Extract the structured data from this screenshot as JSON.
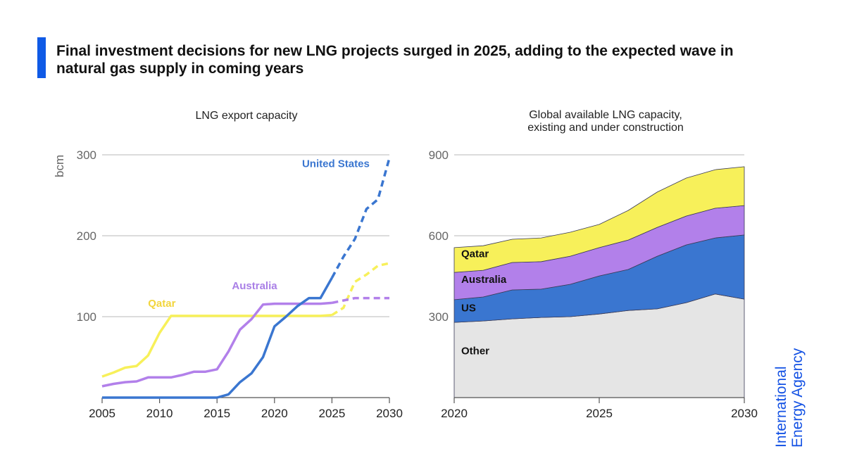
{
  "header": {
    "title": "Final investment decisions for new LNG projects surged in 2025, adding to the expected wave in natural gas supply in coming years",
    "accent_color": "#0f5ae6"
  },
  "branding": {
    "line1": "International",
    "line2": "Energy Agency",
    "color": "#1452e4"
  },
  "chart_data": [
    {
      "type": "line",
      "title": "LNG export capacity",
      "xlabel": "",
      "ylabel": "bcm",
      "xlim": [
        2005,
        2030
      ],
      "ylim": [
        0,
        300
      ],
      "xticks": [
        "2005",
        "2010",
        "2015",
        "2020",
        "2025",
        "2030"
      ],
      "yticks": [
        "100",
        "200",
        "300"
      ],
      "ytick_values": [
        100,
        200,
        300
      ],
      "grid": true,
      "projection_start": 2025,
      "x": [
        2005,
        2006,
        2007,
        2008,
        2009,
        2010,
        2011,
        2012,
        2013,
        2014,
        2015,
        2016,
        2017,
        2018,
        2019,
        2020,
        2021,
        2022,
        2023,
        2024,
        2025,
        2026,
        2027,
        2028,
        2029,
        2030
      ],
      "series": [
        {
          "name": "Qatar",
          "color": "#f7f05a",
          "label_color": "#f2d53c",
          "values": [
            26,
            31,
            37,
            39,
            52,
            80,
            101,
            101,
            101,
            101,
            101,
            101,
            101,
            101,
            101,
            101,
            101,
            101,
            101,
            101,
            102,
            111,
            143,
            152,
            163,
            166
          ]
        },
        {
          "name": "Australia",
          "color": "#b280ea",
          "label_color": "#a97fe6",
          "values": [
            14,
            17,
            19,
            20,
            25,
            25,
            25,
            28,
            32,
            32,
            35,
            57,
            84,
            97,
            115,
            116,
            116,
            116,
            116,
            116,
            117,
            120,
            123,
            123,
            123,
            123
          ]
        },
        {
          "name": "United States",
          "color": "#3a76d0",
          "label_color": "#3a76d0",
          "values": [
            0,
            0,
            0,
            0,
            0,
            0,
            0,
            0,
            0,
            0,
            0,
            4,
            19,
            30,
            50,
            88,
            100,
            113,
            123,
            123,
            148,
            174,
            196,
            233,
            245,
            296
          ]
        }
      ]
    },
    {
      "type": "area",
      "stacked": true,
      "title": "Global available LNG capacity, existing and under construction",
      "xlabel": "",
      "ylabel": "",
      "xlim": [
        2020,
        2030
      ],
      "ylim": [
        0,
        900
      ],
      "xticks": [
        "2020",
        "2025",
        "2030"
      ],
      "yticks": [
        "300",
        "600",
        "900"
      ],
      "ytick_values": [
        300,
        600,
        900
      ],
      "grid": true,
      "x": [
        2020,
        2021,
        2022,
        2023,
        2024,
        2025,
        2026,
        2027,
        2028,
        2029,
        2030
      ],
      "series": [
        {
          "name": "Other",
          "color": "#e5e5e5",
          "values": [
            279,
            284,
            292,
            297,
            300,
            310,
            323,
            329,
            352,
            384,
            365
          ]
        },
        {
          "name": "US",
          "color": "#3a76d0",
          "values": [
            84,
            89,
            107,
            105,
            120,
            141,
            152,
            195,
            214,
            208,
            238
          ]
        },
        {
          "name": "Australia",
          "color": "#b280ea",
          "values": [
            101,
            99,
            102,
            102,
            104,
            105,
            109,
            107,
            107,
            110,
            109
          ]
        },
        {
          "name": "Qatar",
          "color": "#f7f05a",
          "values": [
            92,
            91,
            86,
            88,
            89,
            86,
            110,
            131,
            141,
            143,
            144
          ]
        }
      ]
    }
  ]
}
